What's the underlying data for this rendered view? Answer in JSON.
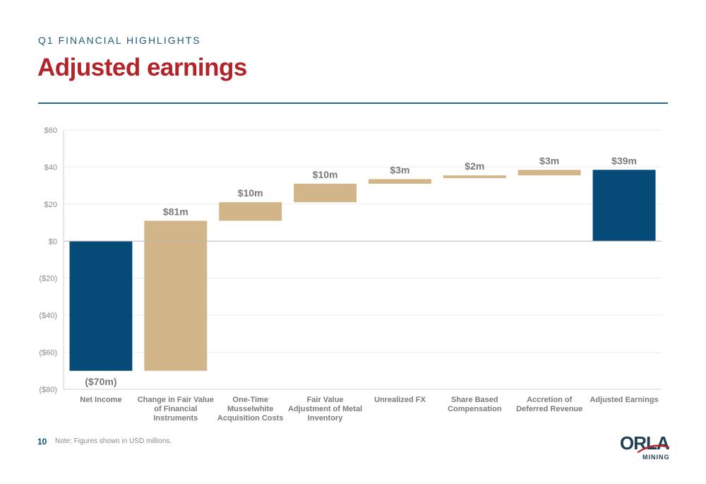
{
  "header": {
    "kicker": "Q1 FINANCIAL HIGHLIGHTS",
    "title": "Adjusted earnings"
  },
  "footer": {
    "page_number": "10",
    "note": "Note: Figures shown in USD millions.",
    "logo_text": "ORLA",
    "logo_sub": "MINING"
  },
  "colors": {
    "total_bar": "#064b78",
    "step_bar": "#d2b589",
    "title": "#b3232a",
    "kicker": "#1f5a7a",
    "label": "#7a7a7a",
    "axis": "#8a8a8a"
  },
  "chart_data": {
    "type": "bar",
    "subtype": "waterfall",
    "title": "",
    "xlabel": "",
    "ylabel": "",
    "ylim": [
      -80,
      60
    ],
    "y_ticks": [
      60,
      40,
      20,
      0,
      -20,
      -40,
      -60,
      -80
    ],
    "y_tick_labels": [
      "$60",
      "$40",
      "$20",
      "$0",
      "($20)",
      "($40)",
      "($60)",
      "($80)"
    ],
    "grid": true,
    "legend": "none",
    "categories": [
      [
        "Net Income"
      ],
      [
        "Change in Fair Value",
        "of Financial",
        "Instruments"
      ],
      [
        "One-Time",
        "Musselwhite",
        "Acquisition Costs"
      ],
      [
        "Fair Value",
        "Adjustment of Metal",
        "Inventory"
      ],
      [
        "Unrealized FX"
      ],
      [
        "Share Based",
        "Compensation"
      ],
      [
        "Accretion of",
        "Deferred Revenue"
      ],
      [
        "Adjusted Earnings"
      ]
    ],
    "bars": [
      {
        "kind": "total",
        "start": 0,
        "end": -70,
        "label": "($70m)"
      },
      {
        "kind": "step",
        "start": -70,
        "end": 11,
        "label": "$81m"
      },
      {
        "kind": "step",
        "start": 11,
        "end": 21,
        "label": "$10m"
      },
      {
        "kind": "step",
        "start": 21,
        "end": 31,
        "label": "$10m"
      },
      {
        "kind": "step",
        "start": 31,
        "end": 33.5,
        "label": "$3m"
      },
      {
        "kind": "step",
        "start": 34,
        "end": 35.5,
        "label": "$2m"
      },
      {
        "kind": "step",
        "start": 35.5,
        "end": 38.5,
        "label": "$3m"
      },
      {
        "kind": "total",
        "start": 0,
        "end": 38.5,
        "label": "$39m"
      }
    ]
  }
}
